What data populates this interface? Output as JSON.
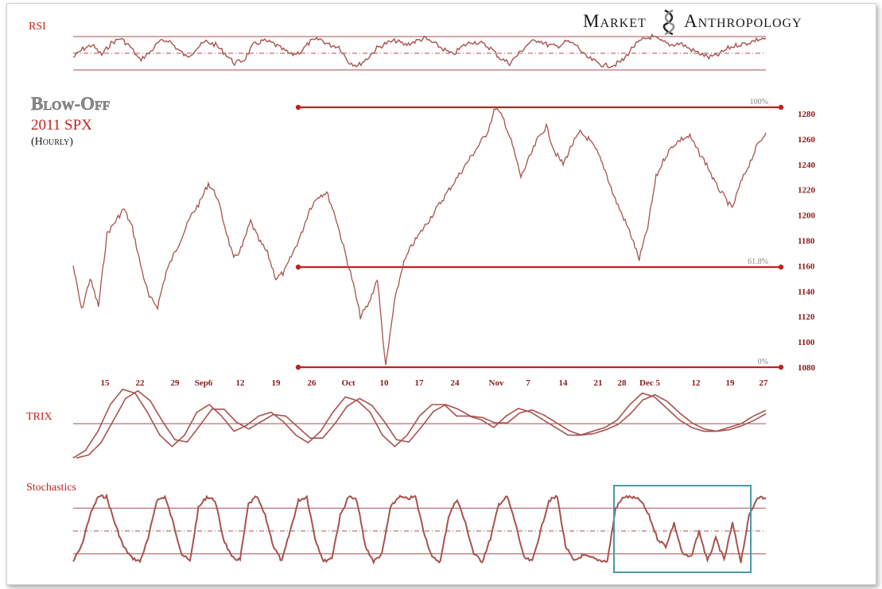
{
  "branding": {
    "word1": "Market",
    "word2": "Anthropology"
  },
  "title": {
    "line1": "Blow-Off",
    "line2": "2011 SPX",
    "line3": "(Hourly)"
  },
  "colors": {
    "line": "#a8524e",
    "accent": "#c0231f",
    "text": "#8b1a1a",
    "box": "#4a9aa8"
  },
  "panels": {
    "rsi_label": "RSI",
    "trix_label": "TRIX",
    "stoch_label": "Stochastics"
  },
  "chart_data": {
    "type": "line",
    "title": "2011 SPX",
    "ylim": [
      1075,
      1290
    ],
    "yticks": [
      1080,
      1100,
      1120,
      1140,
      1160,
      1180,
      1200,
      1220,
      1240,
      1260,
      1280
    ],
    "xticks": [
      "15",
      "22",
      "29",
      "Sep6",
      "12",
      "19",
      "26",
      "Oct",
      "10",
      "17",
      "24",
      "Nov",
      "7",
      "14",
      "21",
      "28",
      "Dec 5",
      "12",
      "19",
      "27"
    ],
    "fib_levels": [
      {
        "label": "100%",
        "value": 1285
      },
      {
        "label": "61.8%",
        "value": 1159
      },
      {
        "label": "0%",
        "value": 1080
      }
    ],
    "series": [
      {
        "values": [
          1160,
          1125,
          1150,
          1128,
          1185,
          1195,
          1205,
          1190,
          1160,
          1135,
          1128,
          1155,
          1170,
          1185,
          1200,
          1210,
          1225,
          1215,
          1190,
          1165,
          1175,
          1195,
          1180,
          1170,
          1150,
          1155,
          1170,
          1185,
          1205,
          1215,
          1218,
          1200,
          1175,
          1150,
          1120,
          1130,
          1150,
          1080,
          1130,
          1160,
          1175,
          1185,
          1195,
          1205,
          1215,
          1225,
          1235,
          1245,
          1255,
          1265,
          1285,
          1275,
          1255,
          1230,
          1245,
          1260,
          1270,
          1250,
          1240,
          1255,
          1265,
          1260,
          1250,
          1235,
          1215,
          1200,
          1185,
          1165,
          1190,
          1230,
          1245,
          1255,
          1260,
          1262,
          1250,
          1240,
          1225,
          1215,
          1205,
          1225,
          1240,
          1255,
          1265
        ]
      }
    ],
    "indicators": {
      "rsi": {
        "levels": [
          70,
          50,
          30
        ],
        "values": [
          45,
          55,
          60,
          48,
          62,
          68,
          58,
          42,
          50,
          63,
          66,
          55,
          45,
          56,
          64,
          60,
          50,
          38,
          42,
          60,
          65,
          62,
          55,
          48,
          52,
          64,
          67,
          60,
          58,
          40,
          35,
          44,
          56,
          62,
          65,
          60,
          64,
          68,
          62,
          55,
          48,
          58,
          64,
          62,
          56,
          44,
          38,
          50,
          62,
          66,
          60,
          58,
          64,
          60,
          46,
          40,
          35,
          36,
          42,
          58,
          66,
          70,
          64,
          60,
          62,
          55,
          50,
          45,
          48,
          56,
          60,
          62,
          66,
          68
        ]
      },
      "trix": {
        "values": [
          -0.9,
          -0.7,
          -0.2,
          0.5,
          0.9,
          0.8,
          0.3,
          -0.3,
          -0.6,
          -0.3,
          0.3,
          0.5,
          0.2,
          -0.2,
          -0.05,
          0.2,
          0.3,
          0.05,
          -0.3,
          -0.5,
          -0.2,
          0.3,
          0.7,
          0.6,
          0.3,
          -0.3,
          -0.6,
          -0.3,
          0.2,
          0.5,
          0.5,
          0.2,
          0.2,
          0.1,
          -0.1,
          0.2,
          0.4,
          0.3,
          0.1,
          -0.1,
          -0.3,
          -0.3,
          -0.2,
          -0.1,
          0.1,
          0.5,
          0.8,
          0.7,
          0.4,
          0.1,
          -0.1,
          -0.2,
          -0.2,
          -0.1,
          0.0,
          0.2,
          0.35
        ]
      },
      "stochastics": {
        "levels": [
          80,
          50,
          20
        ],
        "values": [
          10,
          30,
          70,
          95,
          95,
          60,
          30,
          15,
          10,
          40,
          90,
          95,
          60,
          20,
          10,
          80,
          95,
          90,
          40,
          15,
          12,
          85,
          95,
          70,
          30,
          10,
          50,
          90,
          95,
          40,
          10,
          15,
          70,
          95,
          90,
          30,
          10,
          20,
          80,
          95,
          92,
          95,
          50,
          15,
          10,
          70,
          92,
          60,
          20,
          10,
          40,
          85,
          95,
          60,
          15,
          10,
          50,
          90,
          95,
          30,
          10,
          18,
          15,
          12,
          10,
          80,
          95,
          94,
          90,
          70,
          40,
          30,
          60,
          20,
          15,
          50,
          10,
          40,
          12,
          60,
          10,
          70,
          95,
          92
        ]
      }
    }
  }
}
